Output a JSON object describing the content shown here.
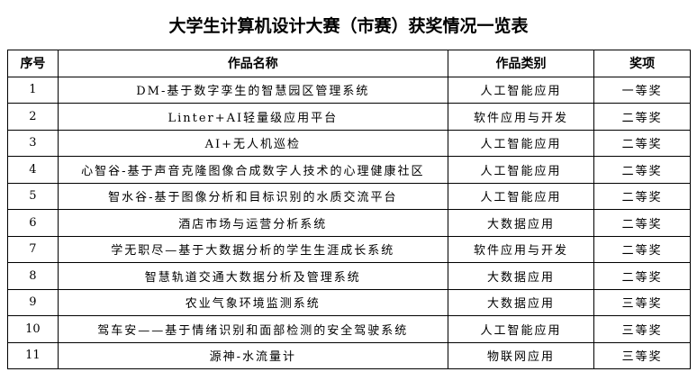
{
  "title": "大学生计算机设计大赛（市赛）获奖情况一览表",
  "headers": [
    "序号",
    "作品名称",
    "作品类别",
    "奖项"
  ],
  "rows": [
    [
      "1",
      "DM-基于数字孪生的智慧园区管理系统",
      "人工智能应用",
      "一等奖"
    ],
    [
      "2",
      "Linter+AI轻量级应用平台",
      "软件应用与开发",
      "二等奖"
    ],
    [
      "3",
      "AI+无人机巡检",
      "人工智能应用",
      "二等奖"
    ],
    [
      "4",
      "心智谷-基于声音克隆图像合成数字人技术的心理健康社区",
      "人工智能应用",
      "二等奖"
    ],
    [
      "5",
      "智水谷-基于图像分析和目标识别的水质交流平台",
      "人工智能应用",
      "二等奖"
    ],
    [
      "6",
      "酒店市场与运营分析系统",
      "大数据应用",
      "二等奖"
    ],
    [
      "7",
      "学无职尽—基于大数据分析的学生生涯成长系统",
      "软件应用与开发",
      "二等奖"
    ],
    [
      "8",
      "智慧轨道交通大数据分析及管理系统",
      "大数据应用",
      "二等奖"
    ],
    [
      "9",
      "农业气象环境监测系统",
      "大数据应用",
      "三等奖"
    ],
    [
      "10",
      "驾车安——基于情绪识别和面部检测的安全驾驶系统",
      "人工智能应用",
      "三等奖"
    ],
    [
      "11",
      "源神-水流量计",
      "物联网应用",
      "三等奖"
    ]
  ]
}
